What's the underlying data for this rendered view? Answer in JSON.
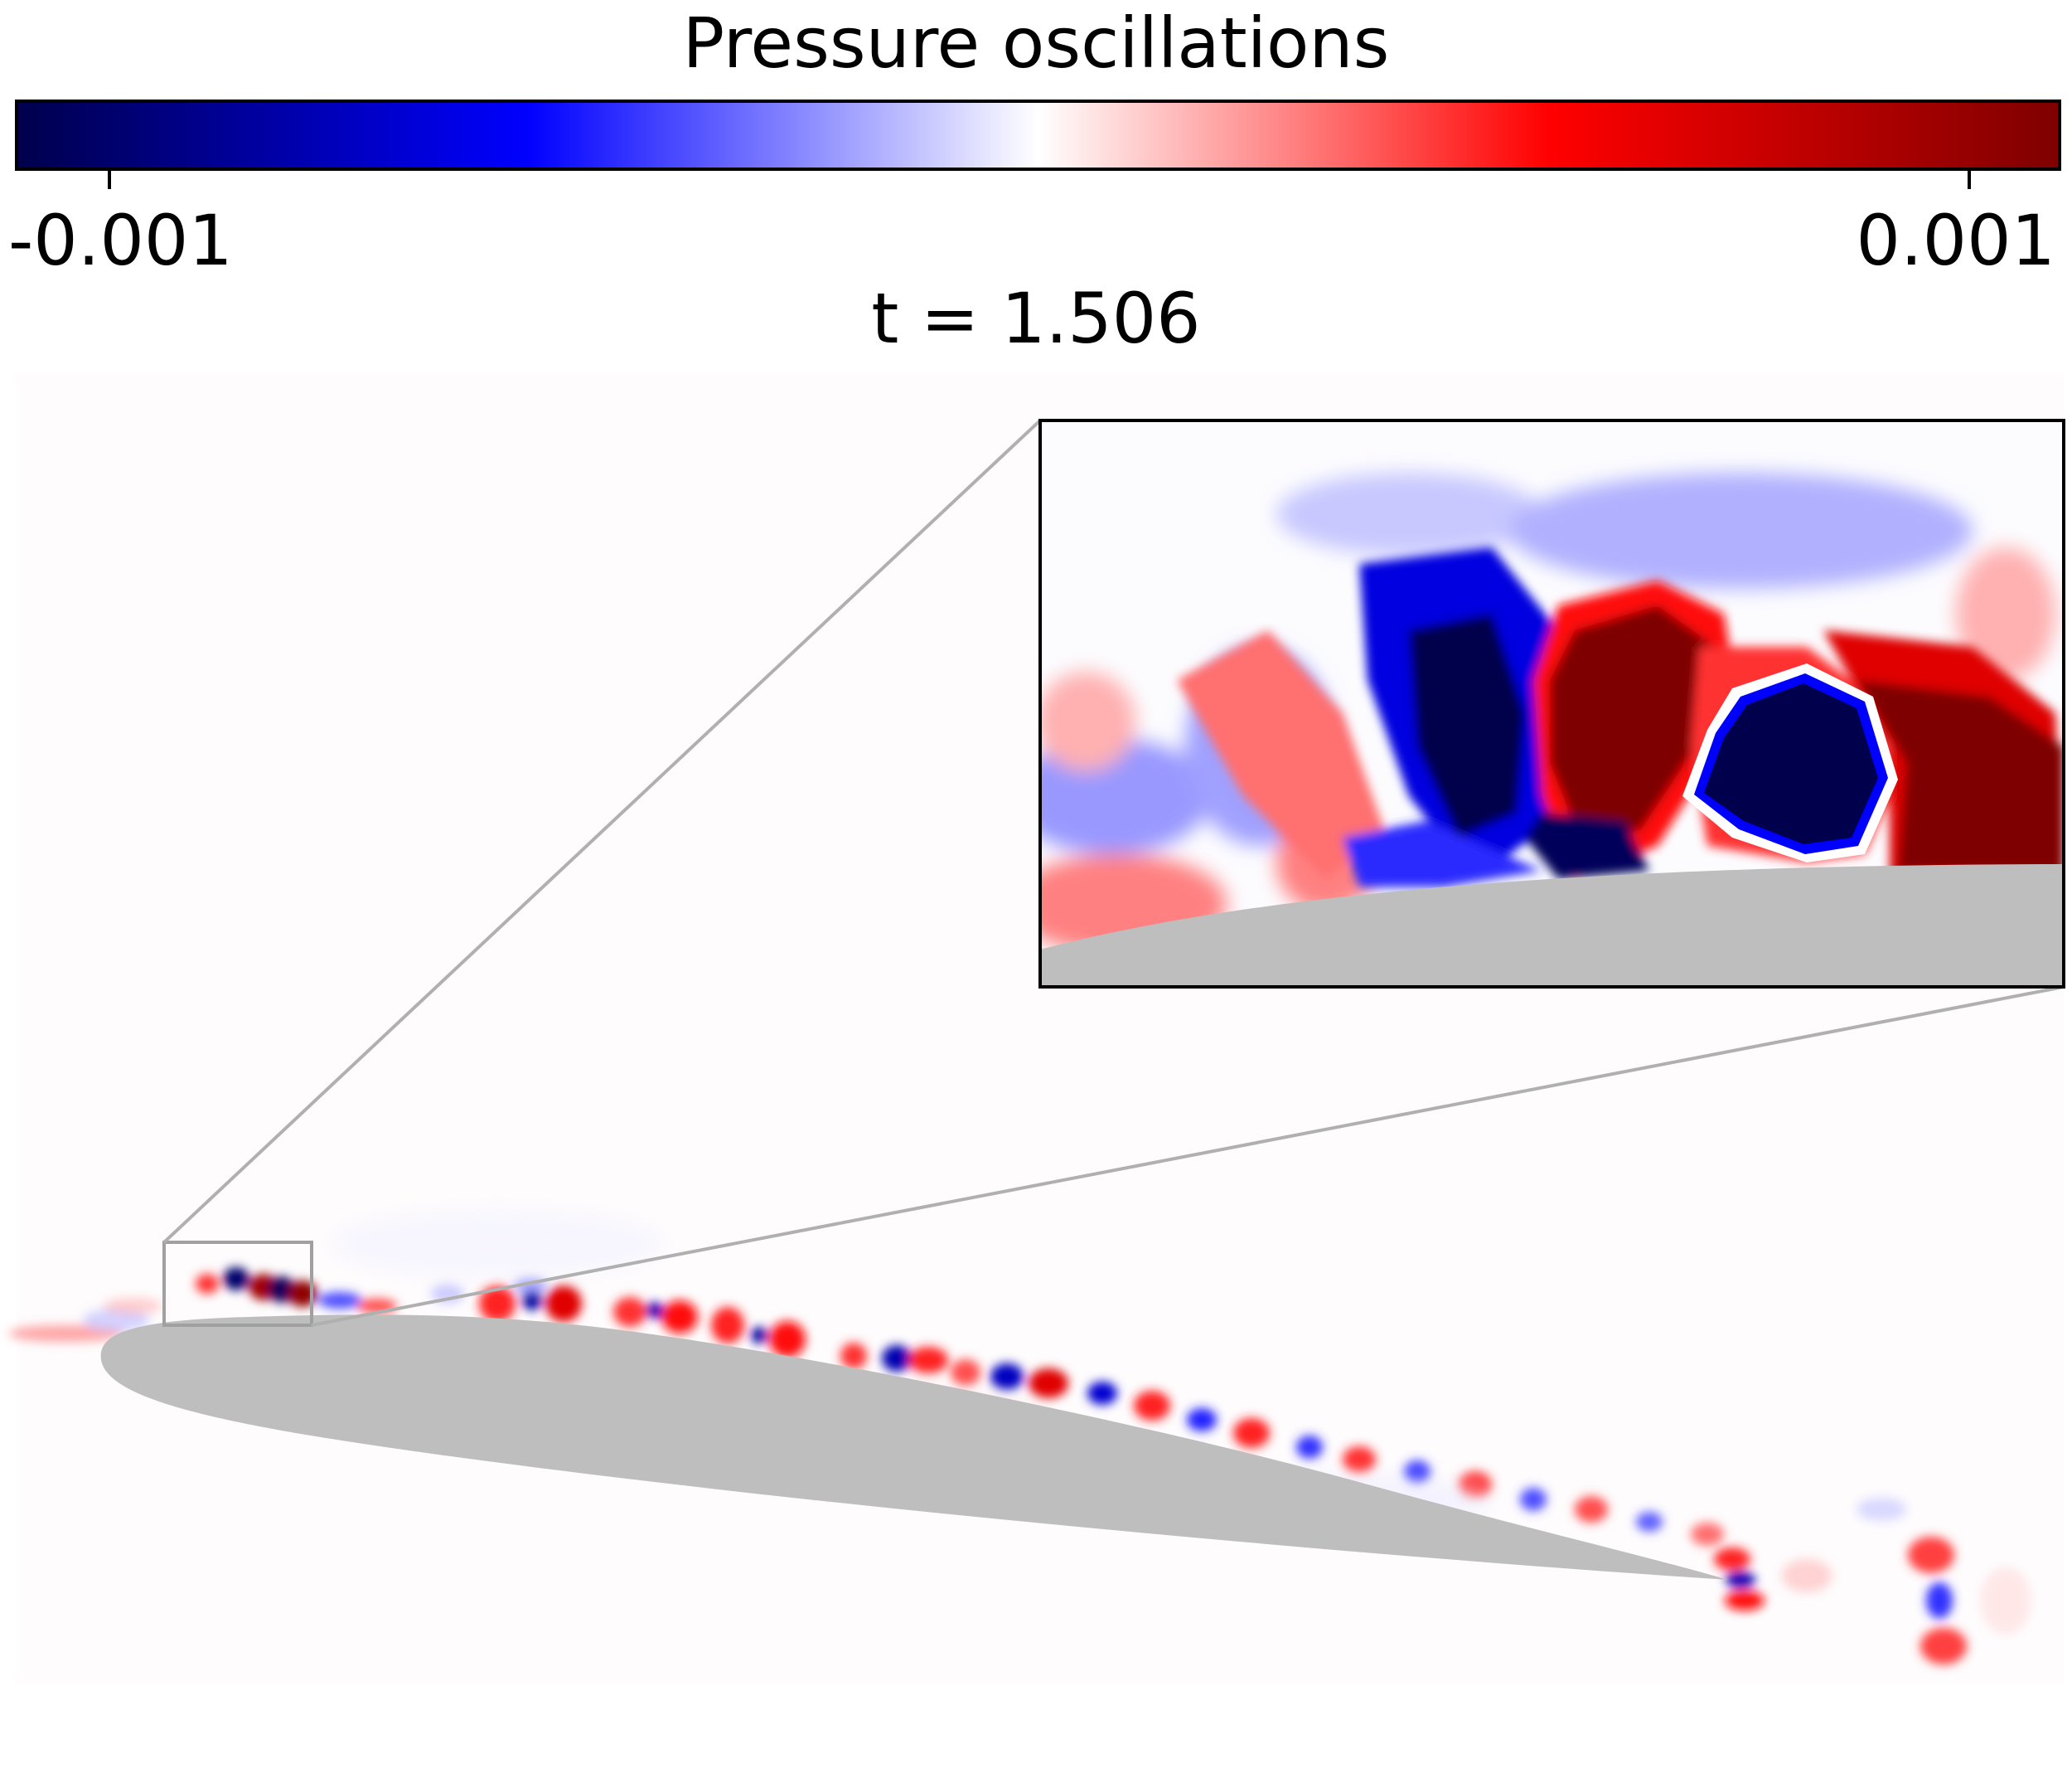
{
  "colorbar": {
    "title": "Pressure oscillations",
    "min_label": "-0.001",
    "max_label": "0.001",
    "colormap": "seismic",
    "colors": [
      "#00004c",
      "#0000ff",
      "#ffffff",
      "#ff0000",
      "#7f0000"
    ]
  },
  "time_label": "t = 1.506",
  "airfoil_color": "#bebebe",
  "zoom_frame_color": "#a0a0a0"
}
